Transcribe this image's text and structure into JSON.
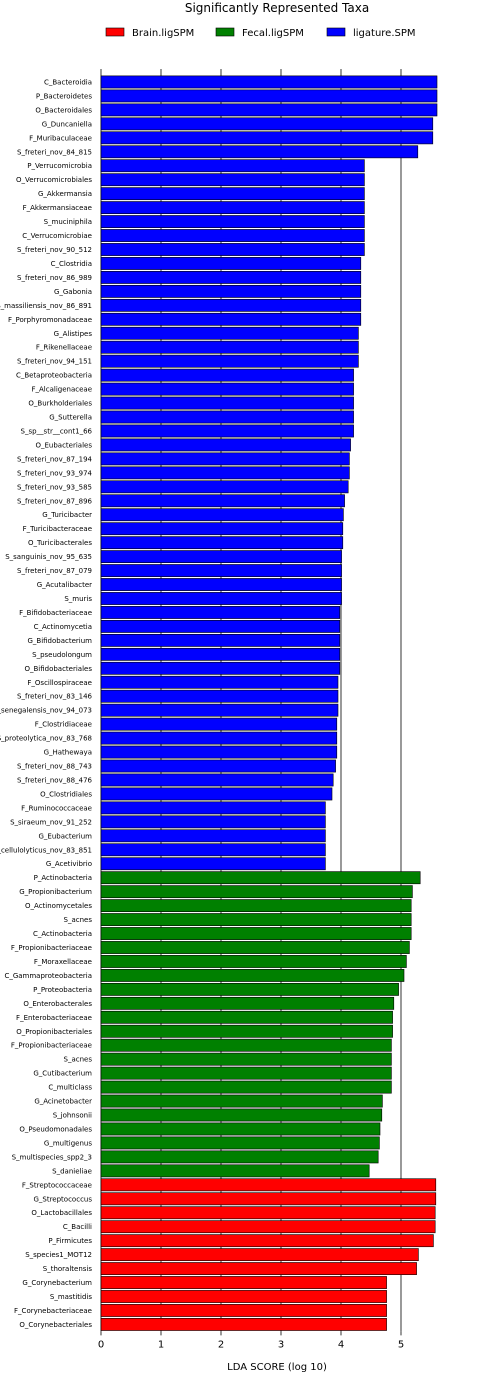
{
  "chart_data": {
    "type": "bar",
    "orientation": "horizontal",
    "title": "Significantly Represented Taxa",
    "xlabel": "LDA SCORE (log 10)",
    "xlim": [
      0,
      5.6
    ],
    "xticks": [
      "0",
      "1",
      "2",
      "3",
      "4",
      "5"
    ],
    "grid": "vertical lines at integer ticks",
    "legend_position": "top",
    "series": [
      {
        "name": "Brain.ligSPM",
        "color": "#ff0000"
      },
      {
        "name": "Fecal.ligSPM",
        "color": "#008000"
      },
      {
        "name": "ligature.SPM",
        "color": "#0000ff"
      }
    ],
    "bars": [
      {
        "label": "C_Bacteroidia",
        "value": 5.6,
        "group": "ligature.SPM"
      },
      {
        "label": "P_Bacteroidetes",
        "value": 5.6,
        "group": "ligature.SPM"
      },
      {
        "label": "O_Bacteroidales",
        "value": 5.6,
        "group": "ligature.SPM"
      },
      {
        "label": "G_Duncaniella",
        "value": 5.53,
        "group": "ligature.SPM"
      },
      {
        "label": "F_Muribaculaceae",
        "value": 5.53,
        "group": "ligature.SPM"
      },
      {
        "label": "S_freteri_nov_84_815",
        "value": 5.28,
        "group": "ligature.SPM"
      },
      {
        "label": "P_Verrucomicrobia",
        "value": 4.39,
        "group": "ligature.SPM"
      },
      {
        "label": "O_Verrucomicrobiales",
        "value": 4.39,
        "group": "ligature.SPM"
      },
      {
        "label": "G_Akkermansia",
        "value": 4.39,
        "group": "ligature.SPM"
      },
      {
        "label": "F_Akkermansiaceae",
        "value": 4.39,
        "group": "ligature.SPM"
      },
      {
        "label": "S_muciniphila",
        "value": 4.39,
        "group": "ligature.SPM"
      },
      {
        "label": "C_Verrucomicrobiae",
        "value": 4.39,
        "group": "ligature.SPM"
      },
      {
        "label": "S_freteri_nov_90_512",
        "value": 4.39,
        "group": "ligature.SPM"
      },
      {
        "label": "C_Clostridia",
        "value": 4.33,
        "group": "ligature.SPM"
      },
      {
        "label": "S_freteri_nov_86_989",
        "value": 4.33,
        "group": "ligature.SPM"
      },
      {
        "label": "G_Gabonia",
        "value": 4.33,
        "group": "ligature.SPM"
      },
      {
        "label": "S_massiliensis_nov_86_891",
        "value": 4.33,
        "group": "ligature.SPM"
      },
      {
        "label": "F_Porphyromonadaceae",
        "value": 4.33,
        "group": "ligature.SPM"
      },
      {
        "label": "G_Alistipes",
        "value": 4.29,
        "group": "ligature.SPM"
      },
      {
        "label": "F_Rikenellaceae",
        "value": 4.29,
        "group": "ligature.SPM"
      },
      {
        "label": "S_freteri_nov_94_151",
        "value": 4.29,
        "group": "ligature.SPM"
      },
      {
        "label": "C_Betaproteobacteria",
        "value": 4.21,
        "group": "ligature.SPM"
      },
      {
        "label": "F_Alcaligenaceae",
        "value": 4.21,
        "group": "ligature.SPM"
      },
      {
        "label": "O_Burkholderiales",
        "value": 4.21,
        "group": "ligature.SPM"
      },
      {
        "label": "G_Sutterella",
        "value": 4.21,
        "group": "ligature.SPM"
      },
      {
        "label": "S_sp__str__cont1_66",
        "value": 4.21,
        "group": "ligature.SPM"
      },
      {
        "label": "O_Eubacteriales",
        "value": 4.16,
        "group": "ligature.SPM"
      },
      {
        "label": "S_freteri_nov_87_194",
        "value": 4.14,
        "group": "ligature.SPM"
      },
      {
        "label": "S_freteri_nov_93_974",
        "value": 4.14,
        "group": "ligature.SPM"
      },
      {
        "label": "S_freteri_nov_93_585",
        "value": 4.12,
        "group": "ligature.SPM"
      },
      {
        "label": "S_freteri_nov_87_896",
        "value": 4.06,
        "group": "ligature.SPM"
      },
      {
        "label": "G_Turicibacter",
        "value": 4.04,
        "group": "ligature.SPM"
      },
      {
        "label": "F_Turicibacteraceae",
        "value": 4.03,
        "group": "ligature.SPM"
      },
      {
        "label": "O_Turicibacterales",
        "value": 4.03,
        "group": "ligature.SPM"
      },
      {
        "label": "S_sanguinis_nov_95_635",
        "value": 4.01,
        "group": "ligature.SPM"
      },
      {
        "label": "S_freteri_nov_87_079",
        "value": 4.01,
        "group": "ligature.SPM"
      },
      {
        "label": "G_Acutalibacter",
        "value": 4.01,
        "group": "ligature.SPM"
      },
      {
        "label": "S_muris",
        "value": 4.01,
        "group": "ligature.SPM"
      },
      {
        "label": "F_Bifidobacteriaceae",
        "value": 3.98,
        "group": "ligature.SPM"
      },
      {
        "label": "C_Actinomycetia",
        "value": 3.98,
        "group": "ligature.SPM"
      },
      {
        "label": "G_Bifidobacterium",
        "value": 3.98,
        "group": "ligature.SPM"
      },
      {
        "label": "S_pseudolongum",
        "value": 3.98,
        "group": "ligature.SPM"
      },
      {
        "label": "O_Bifidobacteriales",
        "value": 3.98,
        "group": "ligature.SPM"
      },
      {
        "label": "F_Oscillospiraceae",
        "value": 3.95,
        "group": "ligature.SPM"
      },
      {
        "label": "S_freteri_nov_83_146",
        "value": 3.95,
        "group": "ligature.SPM"
      },
      {
        "label": "S_senegalensis_nov_94_073",
        "value": 3.95,
        "group": "ligature.SPM"
      },
      {
        "label": "F_Clostridiaceae",
        "value": 3.93,
        "group": "ligature.SPM"
      },
      {
        "label": "S_proteolytica_nov_83_768",
        "value": 3.93,
        "group": "ligature.SPM"
      },
      {
        "label": "G_Hathewaya",
        "value": 3.93,
        "group": "ligature.SPM"
      },
      {
        "label": "S_freteri_nov_88_743",
        "value": 3.91,
        "group": "ligature.SPM"
      },
      {
        "label": "S_freteri_nov_88_476",
        "value": 3.87,
        "group": "ligature.SPM"
      },
      {
        "label": "O_Clostridiales",
        "value": 3.85,
        "group": "ligature.SPM"
      },
      {
        "label": "F_Ruminococcaceae",
        "value": 3.74,
        "group": "ligature.SPM"
      },
      {
        "label": "S_siraeum_nov_91_252",
        "value": 3.74,
        "group": "ligature.SPM"
      },
      {
        "label": "G_Eubacterium",
        "value": 3.74,
        "group": "ligature.SPM"
      },
      {
        "label": "S_cellulolyticus_nov_83_851",
        "value": 3.74,
        "group": "ligature.SPM"
      },
      {
        "label": "G_Acetivibrio",
        "value": 3.74,
        "group": "ligature.SPM"
      },
      {
        "label": "P_Actinobacteria",
        "value": 5.32,
        "group": "Fecal.ligSPM"
      },
      {
        "label": "G_Propionibacterium",
        "value": 5.19,
        "group": "Fecal.ligSPM"
      },
      {
        "label": "O_Actinomycetales",
        "value": 5.17,
        "group": "Fecal.ligSPM"
      },
      {
        "label": "S_acnes",
        "value": 5.17,
        "group": "Fecal.ligSPM"
      },
      {
        "label": "C_Actinobacteria",
        "value": 5.17,
        "group": "Fecal.ligSPM"
      },
      {
        "label": "F_Propionibacteriaceae",
        "value": 5.14,
        "group": "Fecal.ligSPM"
      },
      {
        "label": "F_Moraxellaceae",
        "value": 5.09,
        "group": "Fecal.ligSPM"
      },
      {
        "label": "C_Gammaproteobacteria",
        "value": 5.05,
        "group": "Fecal.ligSPM"
      },
      {
        "label": "P_Proteobacteria",
        "value": 4.96,
        "group": "Fecal.ligSPM"
      },
      {
        "label": "O_Enterobacterales",
        "value": 4.88,
        "group": "Fecal.ligSPM"
      },
      {
        "label": "F_Enterobacteriaceae",
        "value": 4.86,
        "group": "Fecal.ligSPM"
      },
      {
        "label": "O_Propionibacteriales",
        "value": 4.86,
        "group": "Fecal.ligSPM"
      },
      {
        "label": "F_Propionibacteriaceae",
        "value": 4.84,
        "group": "Fecal.ligSPM"
      },
      {
        "label": "S_acnes",
        "value": 4.84,
        "group": "Fecal.ligSPM"
      },
      {
        "label": "G_Cutibacterium",
        "value": 4.84,
        "group": "Fecal.ligSPM"
      },
      {
        "label": "C_multiclass",
        "value": 4.84,
        "group": "Fecal.ligSPM"
      },
      {
        "label": "G_Acinetobacter",
        "value": 4.69,
        "group": "Fecal.ligSPM"
      },
      {
        "label": "S_johnsonii",
        "value": 4.68,
        "group": "Fecal.ligSPM"
      },
      {
        "label": "O_Pseudomonadales",
        "value": 4.65,
        "group": "Fecal.ligSPM"
      },
      {
        "label": "G_multigenus",
        "value": 4.64,
        "group": "Fecal.ligSPM"
      },
      {
        "label": "S_multispecies_spp2_3",
        "value": 4.62,
        "group": "Fecal.ligSPM"
      },
      {
        "label": "S_danieliae",
        "value": 4.47,
        "group": "Fecal.ligSPM"
      },
      {
        "label": "F_Streptococcaceae",
        "value": 5.58,
        "group": "Brain.ligSPM"
      },
      {
        "label": "G_Streptococcus",
        "value": 5.58,
        "group": "Brain.ligSPM"
      },
      {
        "label": "O_Lactobacillales",
        "value": 5.57,
        "group": "Brain.ligSPM"
      },
      {
        "label": "C_Bacilli",
        "value": 5.57,
        "group": "Brain.ligSPM"
      },
      {
        "label": "P_Firmicutes",
        "value": 5.54,
        "group": "Brain.ligSPM"
      },
      {
        "label": "S_species1_MOT12",
        "value": 5.29,
        "group": "Brain.ligSPM"
      },
      {
        "label": "S_thoraltensis",
        "value": 5.26,
        "group": "Brain.ligSPM"
      },
      {
        "label": "G_Corynebacterium",
        "value": 4.76,
        "group": "Brain.ligSPM"
      },
      {
        "label": "S_mastitidis",
        "value": 4.76,
        "group": "Brain.ligSPM"
      },
      {
        "label": "F_Corynebacteriaceae",
        "value": 4.76,
        "group": "Brain.ligSPM"
      },
      {
        "label": "O_Corynebacteriales",
        "value": 4.76,
        "group": "Brain.ligSPM"
      }
    ]
  }
}
